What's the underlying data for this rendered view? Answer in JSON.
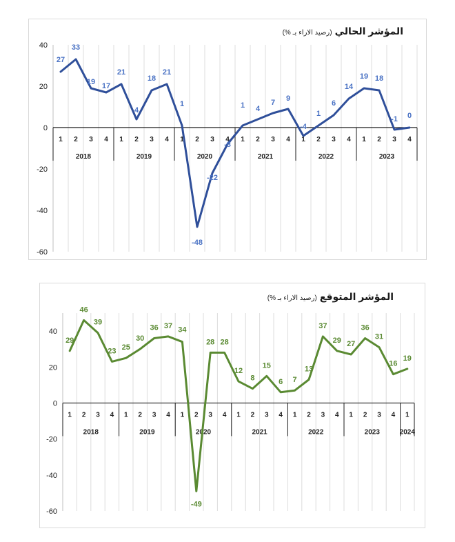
{
  "chart_data": [
    {
      "type": "line",
      "title": "المؤشر الحالي",
      "subtitle": "(رصيد الاراء بـ %)",
      "color": "#2f4f9a",
      "label_color": "#4a72c4",
      "ylim": [
        -60,
        40
      ],
      "yticks": [
        40,
        20,
        0,
        -20,
        -40,
        -60
      ],
      "grid": true,
      "years": [
        "2018",
        "2019",
        "2020",
        "2021",
        "2022",
        "2023"
      ],
      "quarter_labels": [
        "1",
        "2",
        "3",
        "4",
        "1",
        "2",
        "3",
        "4",
        "1",
        "2",
        "3",
        "4",
        "1",
        "2",
        "3",
        "4",
        "1",
        "2",
        "3",
        "4",
        "1",
        "2",
        "3",
        "4"
      ],
      "series": [
        {
          "values": [
            27,
            33,
            19,
            17,
            21,
            4,
            18,
            21,
            1,
            -48,
            -22,
            -8,
            1,
            4,
            7,
            9,
            -4,
            1,
            6,
            14,
            19,
            18,
            -1,
            0
          ],
          "labels": [
            "27",
            "33",
            "19",
            "17",
            "21",
            "4",
            "18",
            "21",
            "1",
            "-48",
            "-22",
            "-8",
            "1",
            "4",
            "7",
            "9",
            "-4",
            "1",
            "6",
            "14",
            "19",
            "18",
            "-1",
            "0"
          ]
        }
      ]
    },
    {
      "type": "line",
      "title": "المؤشر المتوقع",
      "subtitle": "(رصيد الاراء بـ %)",
      "color": "#5a8a32",
      "label_color": "#5a8a32",
      "ylim": [
        -60,
        50
      ],
      "yticks": [
        40,
        20,
        0,
        -20,
        -40,
        -60
      ],
      "grid": true,
      "years": [
        "2018",
        "2019",
        "2020",
        "2021",
        "2022",
        "2023",
        "2024"
      ],
      "quarter_labels": [
        "1",
        "2",
        "3",
        "4",
        "1",
        "2",
        "3",
        "4",
        "1",
        "2",
        "3",
        "4",
        "1",
        "2",
        "3",
        "4",
        "1",
        "2",
        "3",
        "4",
        "1",
        "2",
        "3",
        "4",
        "1"
      ],
      "series": [
        {
          "values": [
            29,
            46,
            39,
            23,
            25,
            30,
            36,
            37,
            34,
            -49,
            28,
            28,
            12,
            8,
            15,
            6,
            7,
            13,
            37,
            29,
            27,
            36,
            31,
            16,
            19
          ],
          "labels": [
            "29",
            "46",
            "39",
            "23",
            "25",
            "30",
            "36",
            "37",
            "34",
            "-49",
            "28",
            "28",
            "12",
            "8",
            "15",
            "6",
            "7",
            "13",
            "37",
            "29",
            "27",
            "36",
            "31",
            "16",
            "19"
          ]
        }
      ]
    }
  ]
}
